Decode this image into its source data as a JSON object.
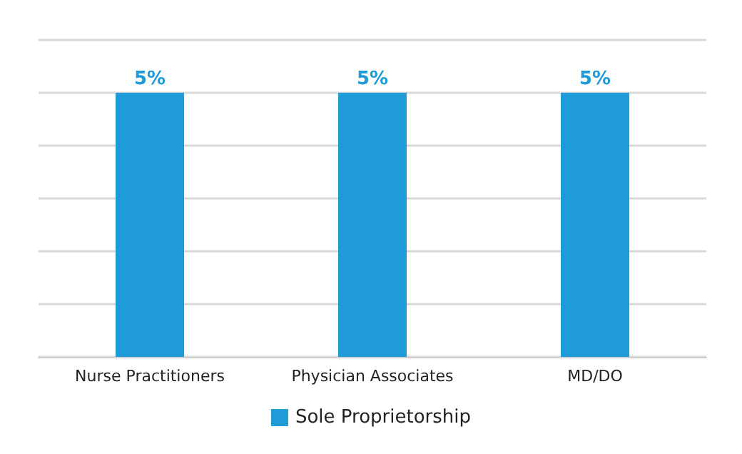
{
  "chart_data": {
    "type": "bar",
    "categories": [
      "Nurse Practitioners",
      "Physician Associates",
      "MD/DO"
    ],
    "series": [
      {
        "name": "Sole Proprietorship",
        "color": "#1f9bd7",
        "values": [
          5,
          5,
          5
        ],
        "value_labels": [
          "5%",
          "5%",
          "5%"
        ]
      }
    ],
    "ylim": [
      0,
      6
    ],
    "yticks": [
      {
        "value": 0,
        "label": null
      },
      {
        "value": 1,
        "label": null
      },
      {
        "value": 2,
        "label": null
      },
      {
        "value": 3,
        "label": null
      },
      {
        "value": 4,
        "label": null
      },
      {
        "value": 5,
        "label": null
      },
      {
        "value": 6,
        "label": null
      }
    ],
    "tick_labels": "x",
    "grid": "y",
    "legend": "bottom"
  }
}
